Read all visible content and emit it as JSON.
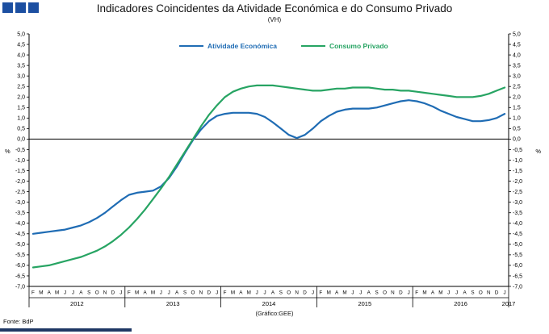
{
  "header": {
    "title": "Indicadores Coincidentes da Atividade Económica e do Consumo Privado",
    "subtitle": "(VH)"
  },
  "footer": {
    "source": "Fonte: BdP",
    "credit": "(Gráfico:GEE)"
  },
  "colors": {
    "logo_blue": "#1C4FA1",
    "footer_bar": "#1F3864",
    "axis": "#000000"
  },
  "chart_data": {
    "type": "line",
    "title": "Indicadores Coincidentes da Atividade Económica e do Consumo Privado",
    "subtitle": "(VH)",
    "ylim": [
      -7.0,
      5.0
    ],
    "ytick_step": 0.5,
    "y_axis_unit": "%",
    "grid": "off",
    "legend_position": "top-center-inside",
    "month_pattern": [
      "F",
      "M",
      "A",
      "M",
      "J",
      "J",
      "A",
      "S",
      "O",
      "N",
      "D",
      "J"
    ],
    "year_blocks": [
      "2012",
      "2013",
      "2014",
      "2015",
      "2016"
    ],
    "end_year": "2017",
    "series": [
      {
        "name": "Atividade Económica",
        "color": "#1F6CB4",
        "values": [
          -4.5,
          -4.45,
          -4.4,
          -4.35,
          -4.3,
          -4.2,
          -4.1,
          -3.95,
          -3.75,
          -3.5,
          -3.2,
          -2.9,
          -2.65,
          -2.55,
          -2.5,
          -2.45,
          -2.25,
          -1.85,
          -1.3,
          -0.65,
          -0.05,
          0.45,
          0.85,
          1.1,
          1.2,
          1.25,
          1.25,
          1.25,
          1.2,
          1.05,
          0.8,
          0.5,
          0.2,
          0.05,
          0.2,
          0.5,
          0.85,
          1.1,
          1.3,
          1.4,
          1.45,
          1.45,
          1.45,
          1.5,
          1.6,
          1.7,
          1.8,
          1.85,
          1.8,
          1.7,
          1.55,
          1.35,
          1.2,
          1.05,
          0.95,
          0.85,
          0.85,
          0.9,
          1.0,
          1.2
        ]
      },
      {
        "name": "Consumo Privado",
        "color": "#27A463",
        "values": [
          -6.1,
          -6.05,
          -6.0,
          -5.9,
          -5.8,
          -5.7,
          -5.6,
          -5.45,
          -5.3,
          -5.1,
          -4.85,
          -4.55,
          -4.2,
          -3.8,
          -3.35,
          -2.85,
          -2.35,
          -1.8,
          -1.2,
          -0.6,
          0.0,
          0.6,
          1.15,
          1.6,
          2.0,
          2.25,
          2.4,
          2.5,
          2.55,
          2.55,
          2.55,
          2.5,
          2.45,
          2.4,
          2.35,
          2.3,
          2.3,
          2.35,
          2.4,
          2.4,
          2.45,
          2.45,
          2.45,
          2.4,
          2.35,
          2.35,
          2.3,
          2.3,
          2.25,
          2.2,
          2.15,
          2.1,
          2.05,
          2.0,
          2.0,
          2.0,
          2.05,
          2.15,
          2.3,
          2.45
        ]
      }
    ]
  }
}
